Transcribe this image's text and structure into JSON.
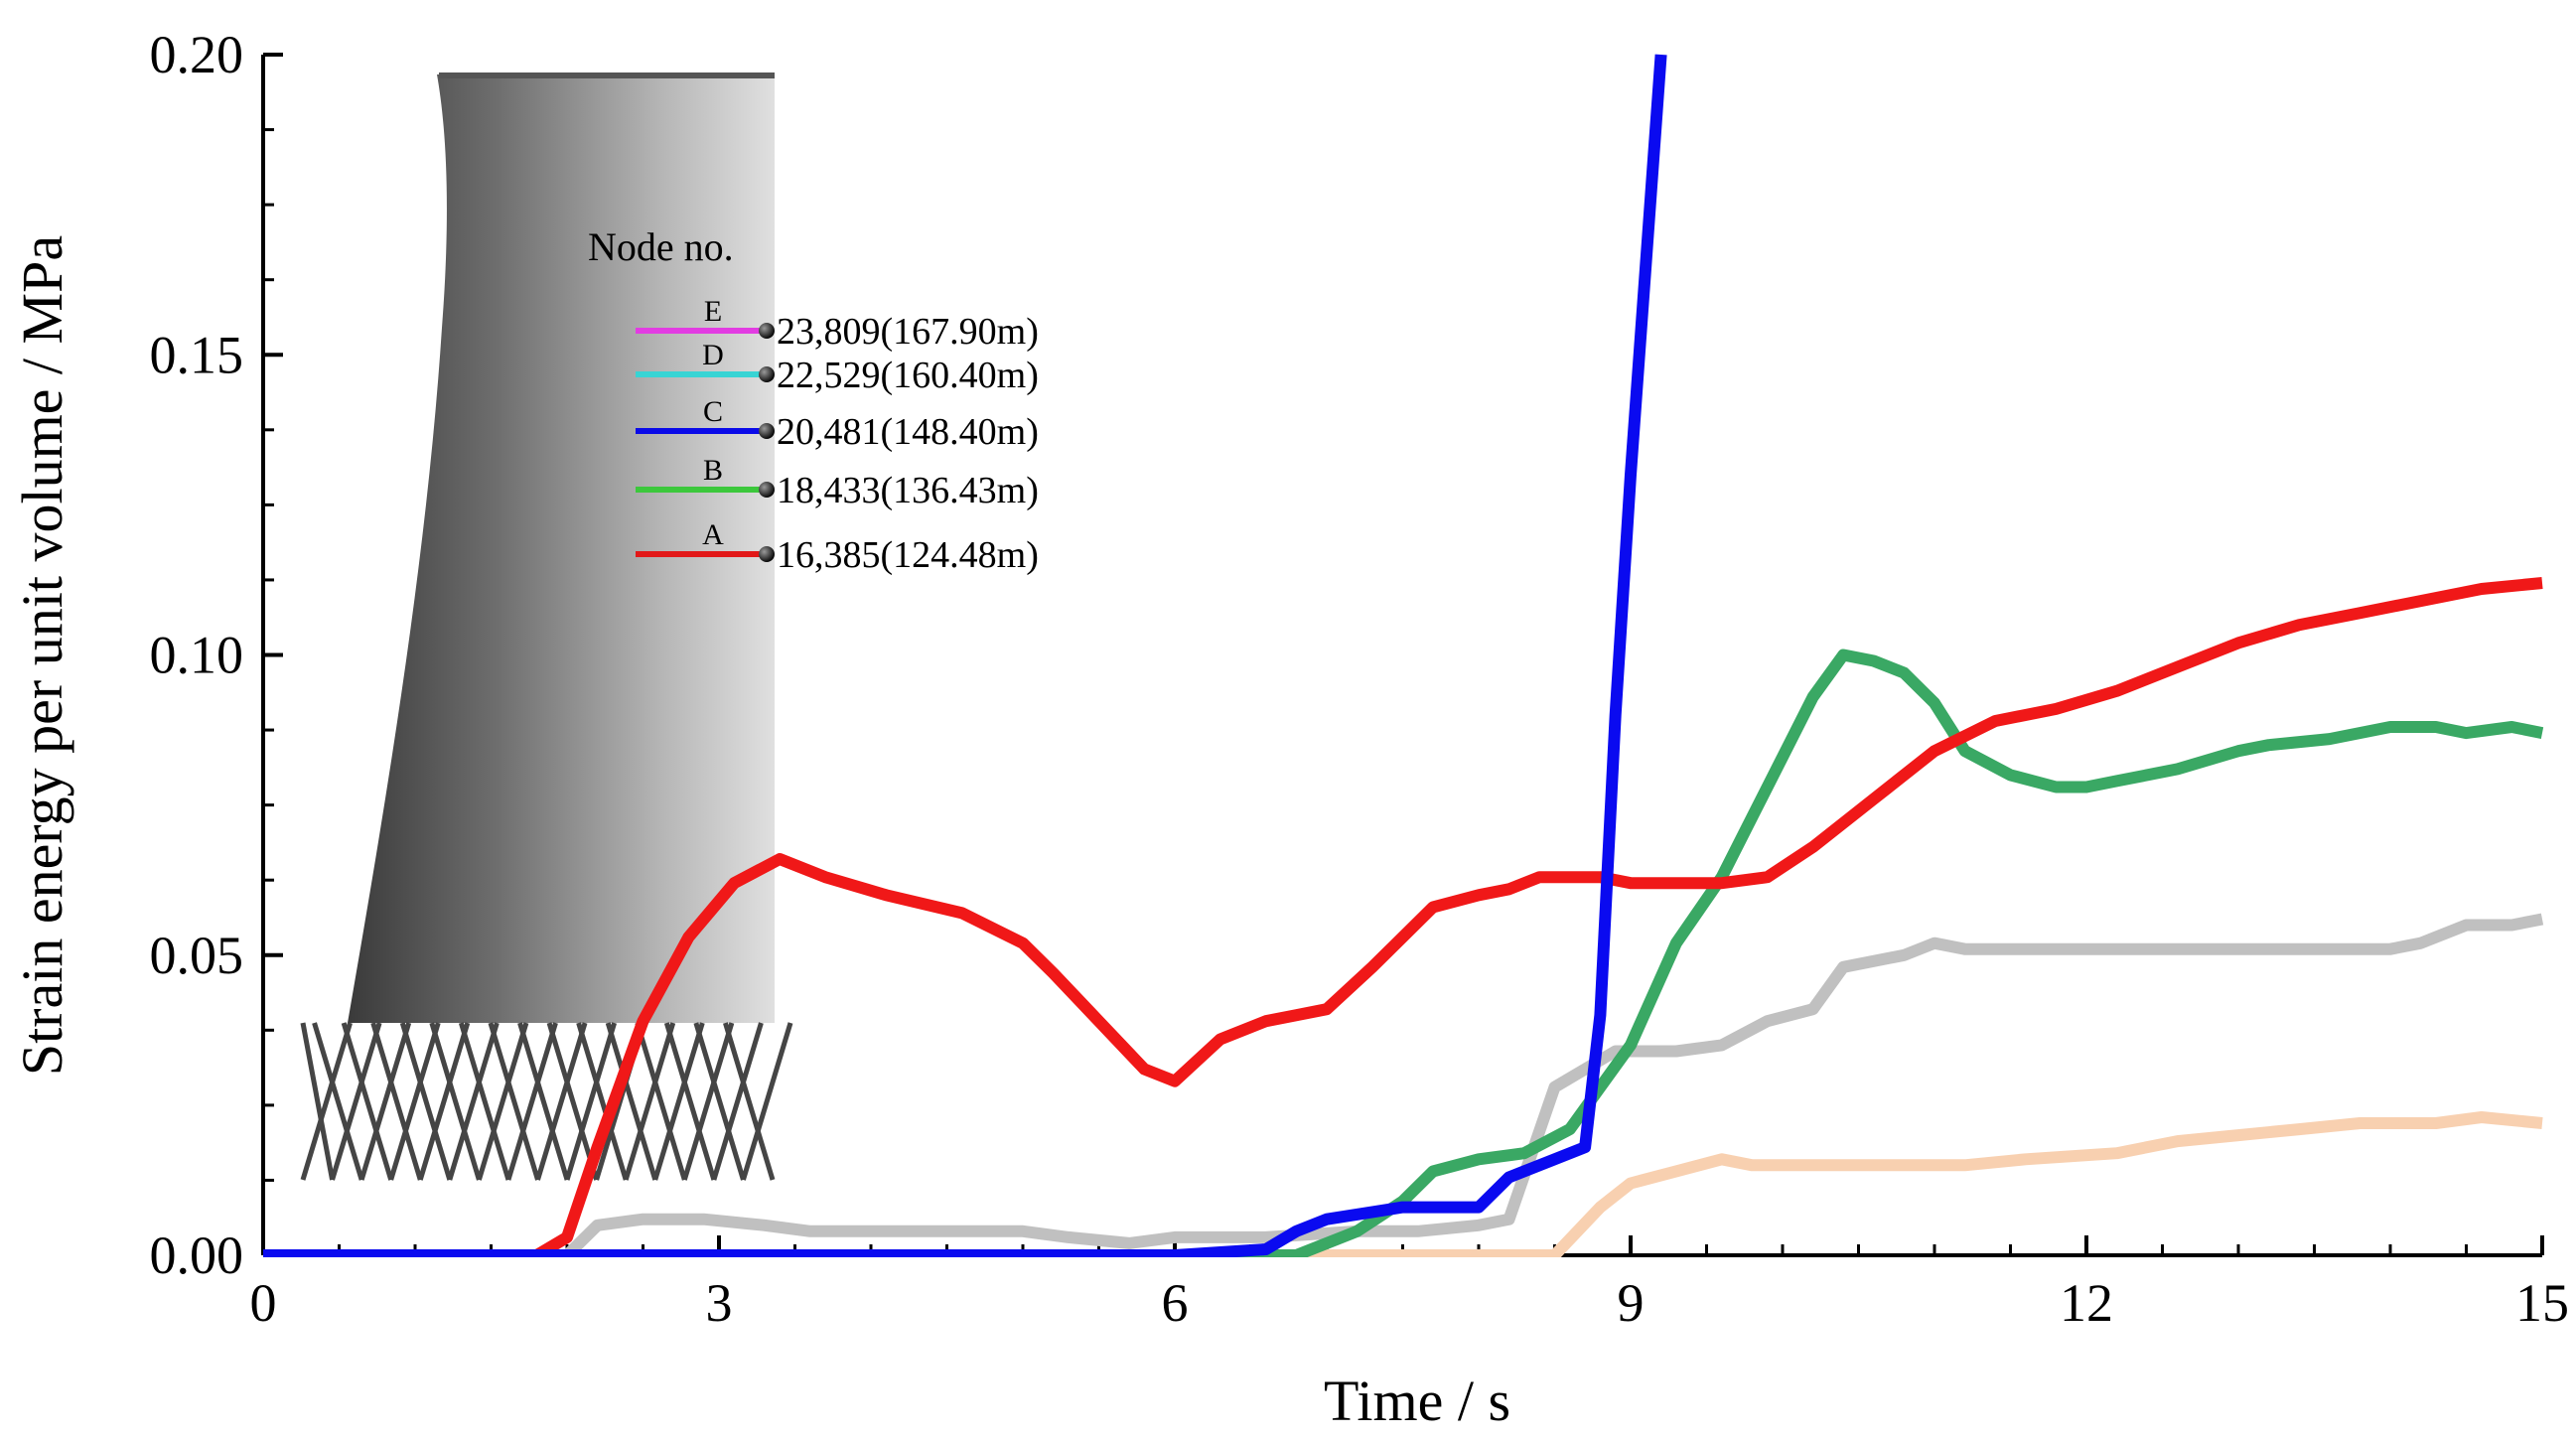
{
  "chart_data": {
    "type": "line",
    "title": "",
    "xlabel": "Time / s",
    "ylabel": "Strain energy per unit volume / MPa",
    "xlim": [
      0,
      15
    ],
    "ylim": [
      0,
      0.2
    ],
    "xticks": [
      0,
      3,
      6,
      9,
      12,
      15
    ],
    "xtick_labels": [
      "0",
      "3",
      "6",
      "9",
      "12",
      "15"
    ],
    "yticks": [
      0,
      0.05,
      0.1,
      0.15,
      0.2
    ],
    "ytick_labels": [
      "0.00",
      "0.05",
      "0.10",
      "0.15",
      "0.20"
    ],
    "grid": false,
    "legend": {
      "title": "Node no.",
      "placement": "top-left, beside tower inset",
      "entries": [
        {
          "letter": "E",
          "label": "23,809(167.90m)",
          "color": "#e23ce2"
        },
        {
          "letter": "D",
          "label": "22,529(160.40m)",
          "color": "#38d4d4"
        },
        {
          "letter": "C",
          "label": "20,481(148.40m)",
          "color": "#0a0ae8"
        },
        {
          "letter": "B",
          "label": "18,433(136.43m)",
          "color": "#3cc83c"
        },
        {
          "letter": "A",
          "label": "16,385(124.48m)",
          "color": "#e21818"
        }
      ]
    },
    "series": [
      {
        "name": "peach",
        "color": "#f8d0b0",
        "x": [
          0,
          6.5,
          7.0,
          8.0,
          8.5,
          8.8,
          9.0,
          9.3,
          9.6,
          9.8,
          10.5,
          11.2,
          11.6,
          12.2,
          12.6,
          13.0,
          13.4,
          13.8,
          14.3,
          14.6,
          15.0
        ],
        "y": [
          0,
          0,
          0,
          0,
          0,
          0.008,
          0.012,
          0.014,
          0.016,
          0.015,
          0.015,
          0.015,
          0.016,
          0.017,
          0.019,
          0.02,
          0.021,
          0.022,
          0.022,
          0.023,
          0.022
        ]
      },
      {
        "name": "gray",
        "color": "#c0c0c0",
        "x": [
          0,
          2.0,
          2.2,
          2.5,
          2.9,
          3.3,
          3.6,
          4.0,
          5.0,
          5.3,
          5.7,
          6.0,
          6.6,
          7.2,
          7.6,
          8.0,
          8.2,
          8.5,
          8.9,
          9.3,
          9.6,
          9.9,
          10.2,
          10.4,
          10.8,
          11.0,
          11.2,
          12.0,
          13.0,
          14.0,
          14.2,
          14.5,
          14.8,
          15.0
        ],
        "y": [
          0,
          0,
          0.005,
          0.006,
          0.006,
          0.005,
          0.004,
          0.004,
          0.004,
          0.003,
          0.002,
          0.003,
          0.003,
          0.004,
          0.004,
          0.005,
          0.006,
          0.028,
          0.034,
          0.034,
          0.035,
          0.039,
          0.041,
          0.048,
          0.05,
          0.052,
          0.051,
          0.051,
          0.051,
          0.051,
          0.052,
          0.055,
          0.055,
          0.056
        ]
      },
      {
        "name": "B",
        "color": "#3aa864",
        "x": [
          0,
          6.8,
          7.2,
          7.5,
          7.7,
          8.0,
          8.3,
          8.6,
          9.0,
          9.3,
          9.6,
          9.8,
          10.0,
          10.2,
          10.4,
          10.6,
          10.8,
          11.0,
          11.2,
          11.5,
          11.8,
          12.0,
          12.2,
          12.6,
          13.0,
          13.2,
          13.6,
          14.0,
          14.3,
          14.5,
          14.8,
          15.0
        ],
        "y": [
          0,
          0,
          0.004,
          0.009,
          0.014,
          0.016,
          0.017,
          0.021,
          0.035,
          0.052,
          0.063,
          0.073,
          0.083,
          0.093,
          0.1,
          0.099,
          0.097,
          0.092,
          0.084,
          0.08,
          0.078,
          0.078,
          0.079,
          0.081,
          0.084,
          0.085,
          0.086,
          0.088,
          0.088,
          0.087,
          0.088,
          0.087
        ]
      },
      {
        "name": "A",
        "color": "#f01818",
        "x": [
          0,
          1.8,
          2.0,
          2.2,
          2.5,
          2.8,
          3.1,
          3.4,
          3.7,
          4.1,
          4.6,
          5.0,
          5.2,
          5.5,
          5.8,
          6.0,
          6.3,
          6.6,
          7.0,
          7.3,
          7.7,
          8.0,
          8.2,
          8.4,
          8.8,
          9.0,
          9.2,
          9.6,
          9.9,
          10.2,
          10.6,
          11.0,
          11.4,
          11.8,
          12.2,
          12.6,
          13.0,
          13.4,
          13.8,
          14.2,
          14.6,
          15.0
        ],
        "y": [
          0,
          0,
          0.003,
          0.018,
          0.039,
          0.053,
          0.062,
          0.066,
          0.063,
          0.06,
          0.057,
          0.052,
          0.047,
          0.039,
          0.031,
          0.029,
          0.036,
          0.039,
          0.041,
          0.048,
          0.058,
          0.06,
          0.061,
          0.063,
          0.063,
          0.062,
          0.062,
          0.062,
          0.063,
          0.068,
          0.076,
          0.084,
          0.089,
          0.091,
          0.094,
          0.098,
          0.102,
          0.105,
          0.107,
          0.109,
          0.111,
          0.112
        ]
      },
      {
        "name": "C",
        "color": "#0a0af0",
        "x": [
          0,
          6.0,
          6.3,
          6.6,
          6.8,
          7.0,
          7.5,
          8.0,
          8.2,
          8.5,
          8.7,
          8.8,
          8.9,
          9.0,
          9.1,
          9.2
        ],
        "y": [
          0,
          0,
          0.0005,
          0.001,
          0.004,
          0.006,
          0.008,
          0.008,
          0.013,
          0.016,
          0.018,
          0.04,
          0.09,
          0.13,
          0.165,
          0.2
        ]
      }
    ]
  }
}
